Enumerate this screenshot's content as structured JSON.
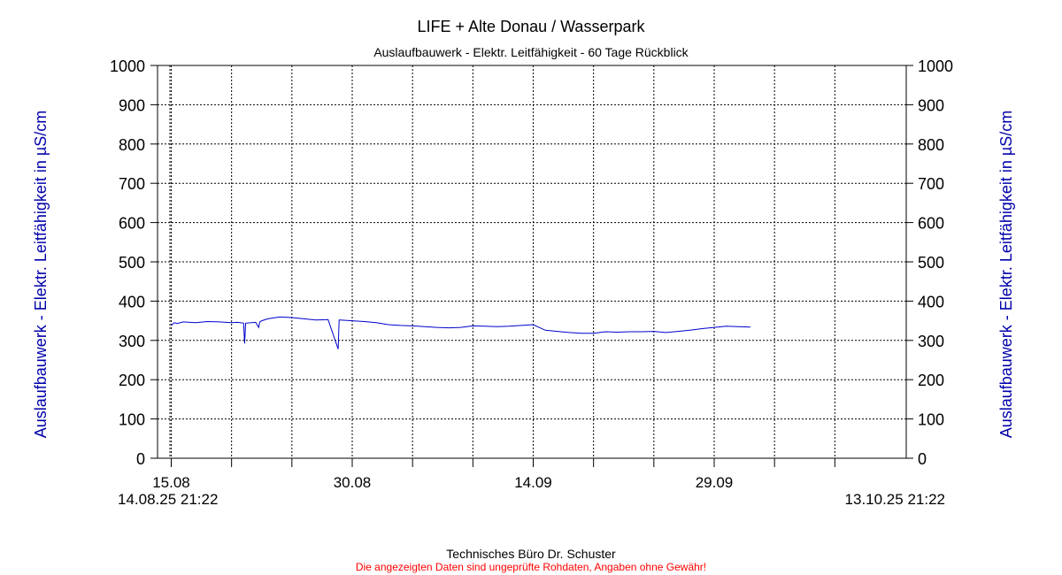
{
  "chart_data": {
    "type": "line",
    "title": "LIFE + Alte Donau / Wasserpark",
    "subtitle": "Auslaufbauwerk - Elektr. Leitfähigkeit - 60 Tage Rückblick",
    "ylabel_left": "Auslaufbauwerk - Elektr. Leitfähigkeit in µS/cm",
    "ylabel_right": "Auslaufbauwerk - Elektr. Leitfähigkeit in µS/cm",
    "ylim": [
      0,
      1000
    ],
    "yticks": [
      0,
      100,
      200,
      300,
      400,
      500,
      600,
      700,
      800,
      900,
      1000
    ],
    "xlim": [
      "2025-08-14 21:22",
      "2025-10-13 21:22"
    ],
    "xtick_labels": [
      {
        "date": "2025-08-15",
        "label": "15.08"
      },
      {
        "date": "2025-08-30",
        "label": "30.08"
      },
      {
        "date": "2025-09-14",
        "label": "14.09"
      },
      {
        "date": "2025-09-29",
        "label": "29.09"
      }
    ],
    "x_start_label": "14.08.25 21:22",
    "x_end_label": "13.10.25 21:22",
    "grid": true,
    "line_color": "#0000cc",
    "series": [
      {
        "x": [
          "2025-08-15 00:00",
          "2025-08-15 06:00",
          "2025-08-15 12:00",
          "2025-08-16 00:00",
          "2025-08-17 00:00",
          "2025-08-18 00:00",
          "2025-08-19 00:00",
          "2025-08-20 00:00",
          "2025-08-20 12:00",
          "2025-08-21 00:00",
          "2025-08-21 02:00",
          "2025-08-21 04:00",
          "2025-08-22 00:00",
          "2025-08-22 06:00",
          "2025-08-22 08:00",
          "2025-08-22 12:00",
          "2025-08-23 00:00",
          "2025-08-24 00:00",
          "2025-08-25 00:00",
          "2025-08-26 00:00",
          "2025-08-27 00:00",
          "2025-08-28 00:00",
          "2025-08-28 20:00",
          "2025-08-28 22:00",
          "2025-08-29 00:00",
          "2025-08-30 00:00",
          "2025-08-31 00:00",
          "2025-09-01 00:00",
          "2025-09-02 00:00",
          "2025-09-03 00:00",
          "2025-09-04 00:00",
          "2025-09-05 00:00",
          "2025-09-06 00:00",
          "2025-09-07 00:00",
          "2025-09-08 00:00",
          "2025-09-09 00:00",
          "2025-09-10 00:00",
          "2025-09-11 00:00",
          "2025-09-12 00:00",
          "2025-09-13 00:00",
          "2025-09-14 00:00",
          "2025-09-15 00:00",
          "2025-09-16 00:00",
          "2025-09-17 00:00",
          "2025-09-18 00:00",
          "2025-09-19 00:00",
          "2025-09-20 00:00",
          "2025-09-21 00:00",
          "2025-09-22 00:00",
          "2025-09-23 00:00",
          "2025-09-24 00:00",
          "2025-09-25 00:00",
          "2025-09-26 00:00",
          "2025-09-27 00:00",
          "2025-09-28 00:00",
          "2025-09-29 00:00",
          "2025-09-30 00:00",
          "2025-10-01 00:00",
          "2025-10-02 00:00"
        ],
        "values": [
          338,
          345,
          343,
          347,
          345,
          348,
          347,
          345,
          346,
          344,
          292,
          344,
          346,
          333,
          347,
          350,
          355,
          360,
          358,
          355,
          352,
          353,
          278,
          352,
          352,
          350,
          348,
          345,
          340,
          338,
          337,
          335,
          333,
          332,
          333,
          337,
          336,
          335,
          336,
          338,
          340,
          326,
          323,
          320,
          318,
          318,
          322,
          321,
          322,
          322,
          323,
          320,
          323,
          326,
          330,
          333,
          336,
          335,
          334
        ]
      }
    ]
  },
  "footer": {
    "company": "Technisches Büro Dr. Schuster",
    "disclaimer": "Die angezeigten Daten sind ungeprüfte Rohdaten, Angaben ohne Gewähr!"
  }
}
